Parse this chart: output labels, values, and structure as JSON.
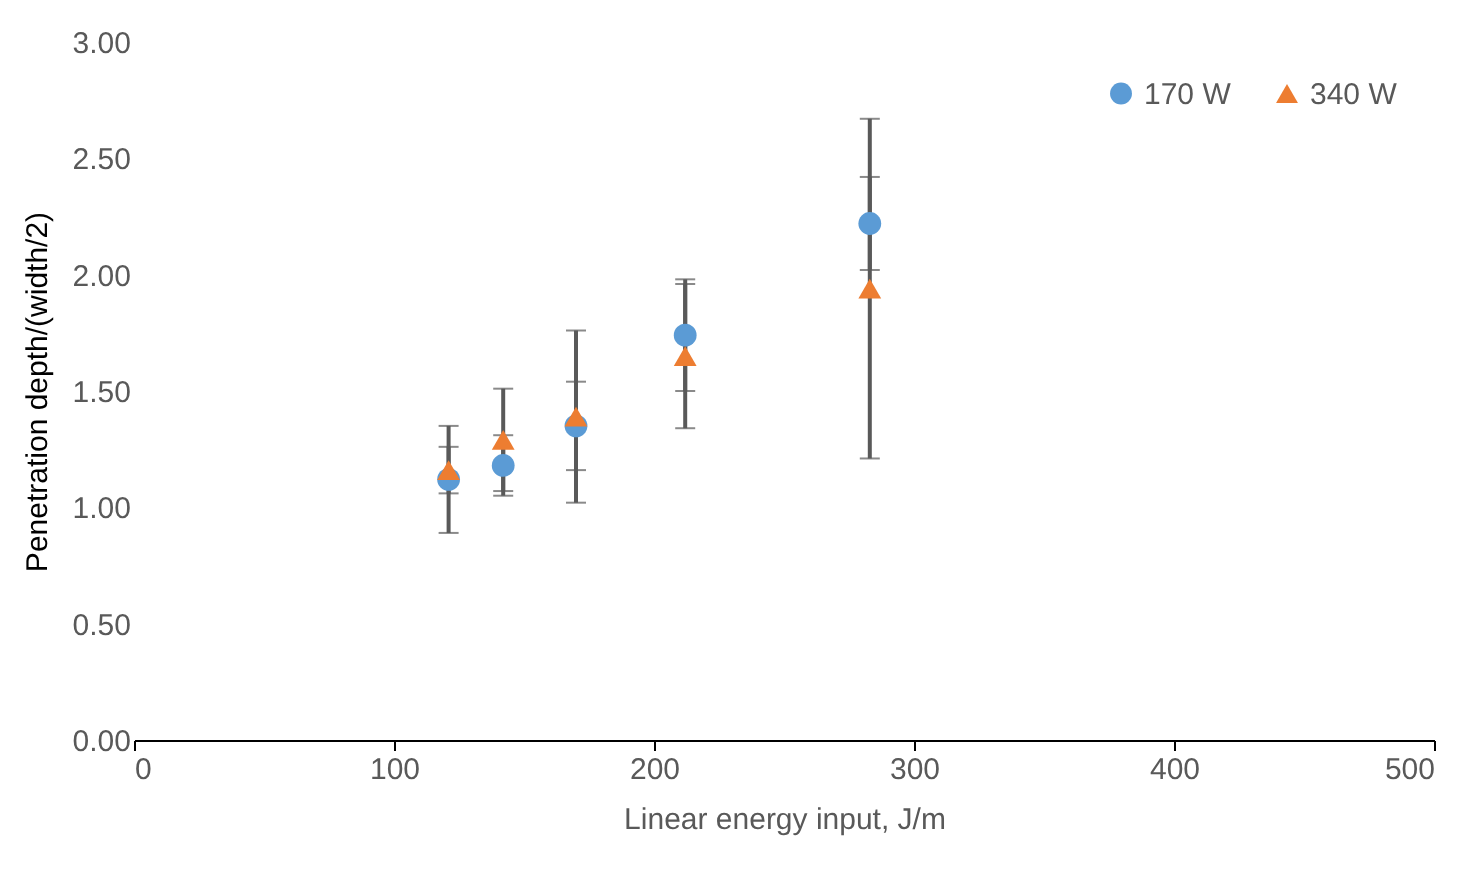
{
  "chart_data": {
    "type": "scatter",
    "xlabel": "Linear energy input, J/m",
    "ylabel": "Penetration depth/(width/2)",
    "x": [
      121,
      142,
      170,
      212,
      283
    ],
    "series": [
      {
        "name": "170 W",
        "color": "#5b9bd5",
        "marker": "circle",
        "values": [
          1.12,
          1.18,
          1.35,
          1.74,
          2.22
        ],
        "errors": [
          0.23,
          0.13,
          0.19,
          0.24,
          0.2
        ]
      },
      {
        "name": "340 W",
        "color": "#ed7d31",
        "marker": "triangle",
        "values": [
          1.16,
          1.29,
          1.39,
          1.65,
          1.94
        ],
        "errors": [
          0.1,
          0.22,
          0.37,
          0.31,
          0.73
        ]
      }
    ],
    "xlim": [
      0,
      500
    ],
    "xticks": [
      0,
      100,
      200,
      300,
      400,
      500
    ],
    "ylim": [
      0,
      3
    ],
    "yticks": [
      {
        "value": 0,
        "label": "0.00"
      },
      {
        "value": 0.5,
        "label": "0.50"
      },
      {
        "value": 1,
        "label": "1.00"
      },
      {
        "value": 1.5,
        "label": "1.50"
      },
      {
        "value": 2,
        "label": "2.00"
      },
      {
        "value": 2.5,
        "label": "2.50"
      },
      {
        "value": 3,
        "label": "3.00"
      }
    ],
    "grid": false,
    "legend": "top right"
  }
}
